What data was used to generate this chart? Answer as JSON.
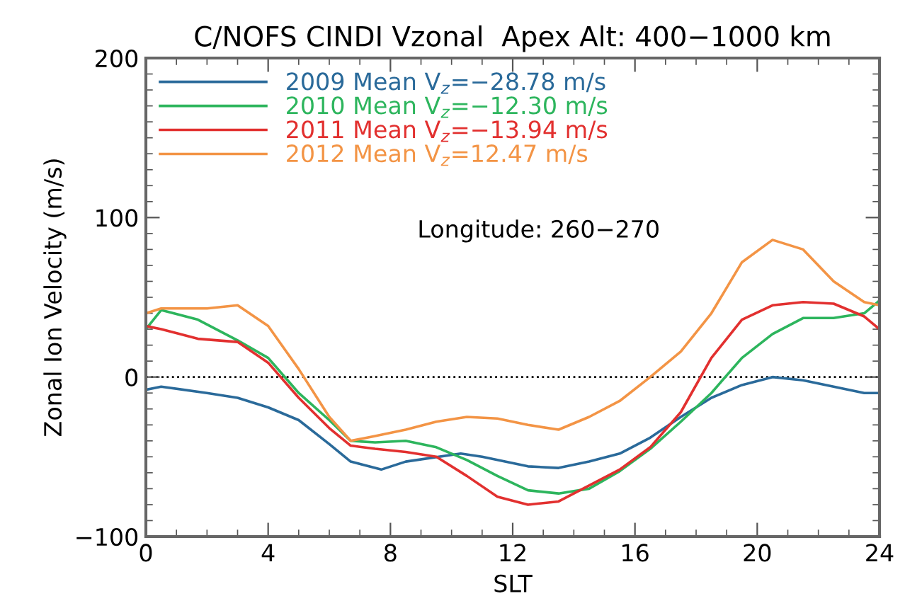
{
  "chart_data": {
    "type": "line",
    "title": "C/NOFS CINDI Vzonal  Apex Alt: 400−1000 km",
    "xlabel": "SLT",
    "ylabel": "Zonal Ion Velocity (m/s)",
    "xlim": [
      0,
      24
    ],
    "xticks": [
      0,
      4,
      8,
      12,
      16,
      20,
      24
    ],
    "ylim": [
      -100,
      200
    ],
    "yticks": [
      -100,
      0,
      100,
      200
    ],
    "grid": false,
    "legend": "top left",
    "marker": "none",
    "line_style": "solid",
    "ref_lines": [
      {
        "axis": "y",
        "value": 0,
        "line_style": "dotted",
        "color": "#000000"
      }
    ],
    "annotations": [
      "Longitude: 260−270"
    ],
    "series": [
      {
        "name": "2009 Mean V$_{z}$=−28.78 m/s",
        "color": "#2a6a9a",
        "x": [
          0,
          0.5,
          2,
          3,
          4,
          5,
          6,
          6.7,
          7.7,
          8.5,
          10.3,
          11,
          12.5,
          13.5,
          14.5,
          15.5,
          16.5,
          17.5,
          18.5,
          19.5,
          20.5,
          21.5,
          22.5,
          23.5,
          24
        ],
        "values": [
          -8,
          -6,
          -10,
          -13,
          -19,
          -27,
          -42,
          -53,
          -58,
          -53,
          -48,
          -50,
          -56,
          -57,
          -53,
          -48,
          -38,
          -25,
          -13,
          -5,
          0,
          -2,
          -6,
          -10,
          -10
        ]
      },
      {
        "name": "2010 Mean V$_{z}$=−12.30 m/s",
        "color": "#2db55d",
        "x": [
          0,
          0.5,
          1.7,
          3,
          4,
          5,
          6,
          6.7,
          7.5,
          8.5,
          9.5,
          10.5,
          11.5,
          12.5,
          13.5,
          14.5,
          15.5,
          16.5,
          17.5,
          18.5,
          19.5,
          20.5,
          21.5,
          22.5,
          23.5,
          24
        ],
        "values": [
          30,
          42,
          36,
          23,
          12,
          -10,
          -27,
          -40,
          -41,
          -40,
          -44,
          -52,
          -62,
          -71,
          -73,
          -70,
          -59,
          -45,
          -28,
          -10,
          12,
          27,
          37,
          37,
          40,
          48
        ]
      },
      {
        "name": "2011 Mean V$_{z}$=−13.94 m/s",
        "color": "#e2302f",
        "x": [
          0,
          0.5,
          1.7,
          3,
          4,
          5,
          6,
          6.7,
          7.5,
          8.5,
          9.5,
          10.5,
          11.5,
          12.5,
          13.5,
          14.5,
          15.5,
          16.5,
          17.5,
          18.5,
          19.5,
          20.5,
          21.5,
          22.5,
          23.5,
          24
        ],
        "values": [
          32,
          30,
          24,
          22,
          9,
          -13,
          -32,
          -43,
          -45,
          -47,
          -50,
          -62,
          -75,
          -80,
          -78,
          -68,
          -58,
          -44,
          -22,
          12,
          36,
          45,
          47,
          46,
          38,
          30
        ]
      },
      {
        "name": "2012 Mean V$_{z}$=12.47 m/s",
        "color": "#f39445",
        "x": [
          0,
          0.5,
          2,
          3,
          4,
          5,
          6,
          6.7,
          7.5,
          8.5,
          9.5,
          10.5,
          11.5,
          12.5,
          13.5,
          14.5,
          15.5,
          16.5,
          17.5,
          18.5,
          19.5,
          20.5,
          21.5,
          22.5,
          23.5,
          24
        ],
        "values": [
          40,
          43,
          43,
          45,
          32,
          5,
          -25,
          -40,
          -37,
          -33,
          -28,
          -25,
          -26,
          -30,
          -33,
          -25,
          -15,
          0,
          16,
          40,
          72,
          86,
          80,
          60,
          47,
          45
        ]
      }
    ]
  }
}
